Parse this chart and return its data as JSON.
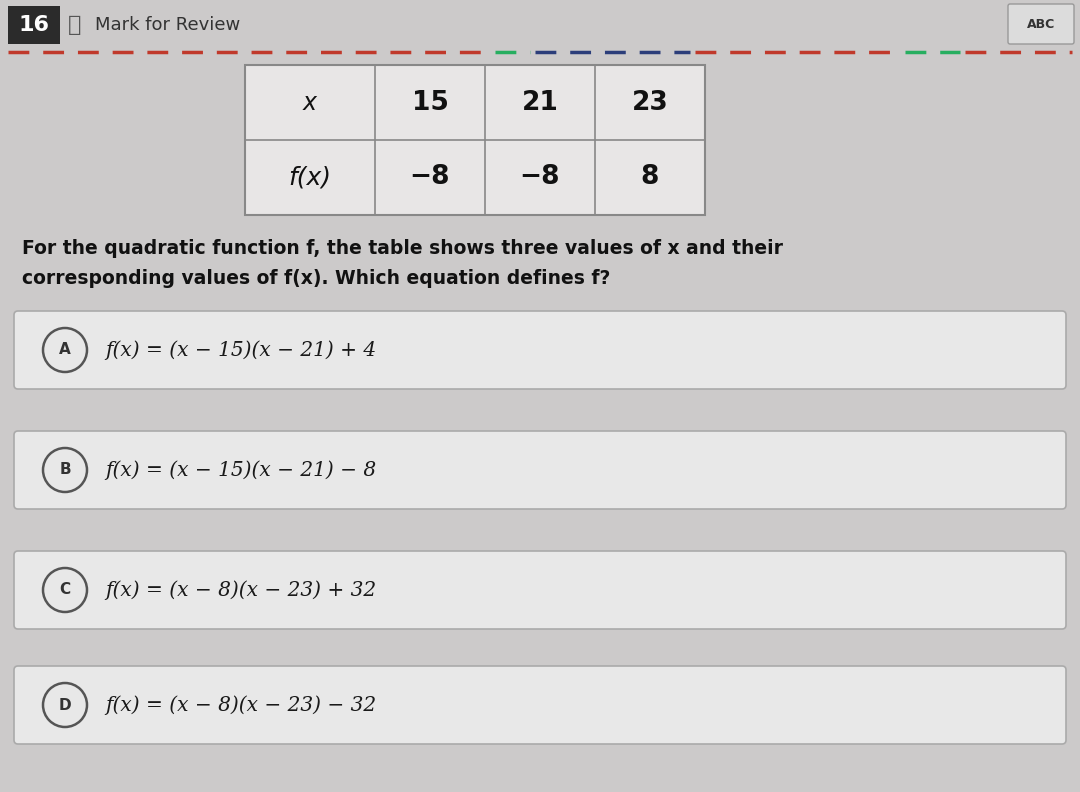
{
  "background_color": "#cccaca",
  "title_num": "16",
  "title_num_bg": "#2b2b2b",
  "title_text": "Mark for Review",
  "table": {
    "col_headers": [
      "x",
      "15",
      "21",
      "23"
    ],
    "row2": [
      "f(x)",
      "−8",
      "−8",
      "8"
    ]
  },
  "question_text_line1": "For the quadratic function f, the table shows three values of x and their",
  "question_text_line2": "corresponding values of f(x). Which equation defines f?",
  "options": [
    {
      "label": "A",
      "text": "f(x) = (x − 15)(x − 21) + 4"
    },
    {
      "label": "B",
      "text": "f(x) = (x − 15)(x − 21) − 8"
    },
    {
      "label": "C",
      "text": "f(x) = (x − 8)(x − 23) + 32"
    },
    {
      "label": "D",
      "text": "f(x) = (x − 8)(x − 23) − 32"
    }
  ],
  "option_box_color": "#e8e8e8",
  "option_box_edge": "#aaaaaa",
  "option_circle_edge": "#555555",
  "option_text_color": "#1a1a1a",
  "font_size_question": 13.5,
  "font_size_option": 14.5,
  "font_size_table": 17,
  "dash_colors": [
    "#c0392b",
    "#2471a3",
    "#27ae60",
    "#8e44ad"
  ],
  "table_bg": "#e8e6e6",
  "calc_box_color": "#dcdcdc"
}
